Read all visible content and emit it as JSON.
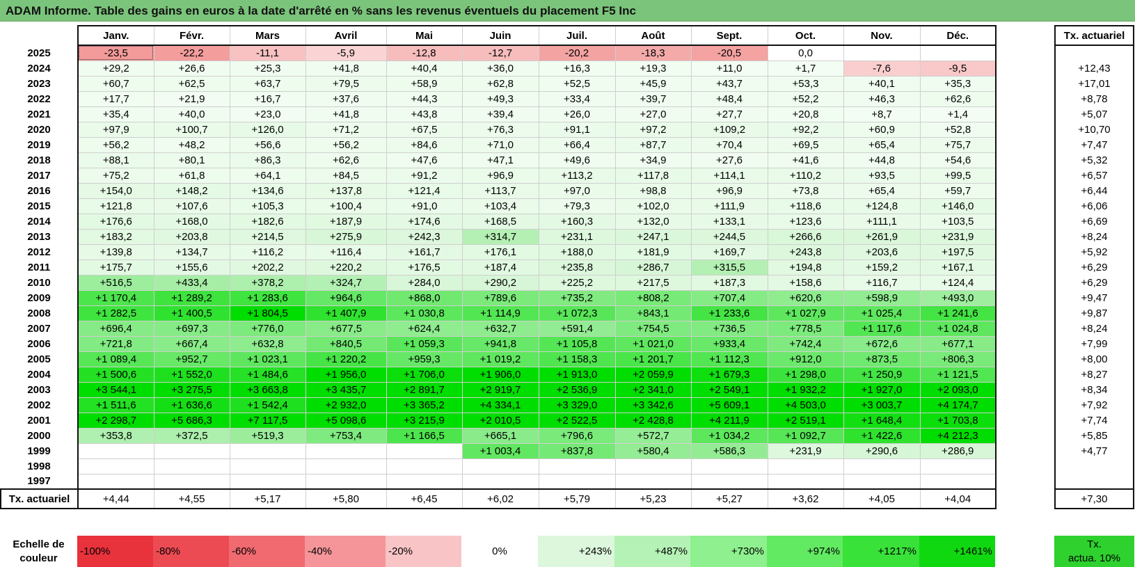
{
  "title": "ADAM Informe. Table des gains en euros à la date d'arrêté en % sans les revenus éventuels du placement F5 Inc",
  "months": [
    "Janv.",
    "Févr.",
    "Mars",
    "Avril",
    "Mai",
    "Juin",
    "Juil.",
    "Août",
    "Sept.",
    "Oct.",
    "Nov.",
    "Déc."
  ],
  "actuarial_header": "Tx. actuariel",
  "rows": [
    {
      "year": "2025",
      "values": [
        "-23,5",
        "-22,2",
        "-11,1",
        "-5,9",
        "-12,8",
        "-12,7",
        "-20,2",
        "-18,3",
        "-20,5",
        "0,0",
        "",
        ""
      ],
      "rate": ""
    },
    {
      "year": "2024",
      "values": [
        "+29,2",
        "+26,6",
        "+25,3",
        "+41,8",
        "+40,4",
        "+36,0",
        "+16,3",
        "+19,3",
        "+11,0",
        "+1,7",
        "-7,6",
        "-9,5"
      ],
      "rate": "+12,43"
    },
    {
      "year": "2023",
      "values": [
        "+60,7",
        "+62,5",
        "+63,7",
        "+79,5",
        "+58,9",
        "+62,8",
        "+52,5",
        "+45,9",
        "+43,7",
        "+53,3",
        "+40,1",
        "+35,3"
      ],
      "rate": "+17,01"
    },
    {
      "year": "2022",
      "values": [
        "+17,7",
        "+21,9",
        "+16,7",
        "+37,6",
        "+44,3",
        "+49,3",
        "+33,4",
        "+39,7",
        "+48,4",
        "+52,2",
        "+46,3",
        "+62,6"
      ],
      "rate": "+8,78"
    },
    {
      "year": "2021",
      "values": [
        "+35,4",
        "+40,0",
        "+23,0",
        "+41,8",
        "+43,8",
        "+39,4",
        "+26,0",
        "+27,0",
        "+27,7",
        "+20,8",
        "+8,7",
        "+1,4"
      ],
      "rate": "+5,07"
    },
    {
      "year": "2020",
      "values": [
        "+97,9",
        "+100,7",
        "+126,0",
        "+71,2",
        "+67,5",
        "+76,3",
        "+91,1",
        "+97,2",
        "+109,2",
        "+92,2",
        "+60,9",
        "+52,8"
      ],
      "rate": "+10,70"
    },
    {
      "year": "2019",
      "values": [
        "+56,2",
        "+48,2",
        "+56,6",
        "+56,2",
        "+84,6",
        "+71,0",
        "+66,4",
        "+87,7",
        "+70,4",
        "+69,5",
        "+65,4",
        "+75,7"
      ],
      "rate": "+7,47"
    },
    {
      "year": "2018",
      "values": [
        "+88,1",
        "+80,1",
        "+86,3",
        "+62,6",
        "+47,6",
        "+47,1",
        "+49,6",
        "+34,9",
        "+27,6",
        "+41,6",
        "+44,8",
        "+54,6"
      ],
      "rate": "+5,32"
    },
    {
      "year": "2017",
      "values": [
        "+75,2",
        "+61,8",
        "+64,1",
        "+84,5",
        "+91,2",
        "+96,9",
        "+113,2",
        "+117,8",
        "+114,1",
        "+110,2",
        "+93,5",
        "+99,5"
      ],
      "rate": "+6,57"
    },
    {
      "year": "2016",
      "values": [
        "+154,0",
        "+148,2",
        "+134,6",
        "+137,8",
        "+121,4",
        "+113,7",
        "+97,0",
        "+98,8",
        "+96,9",
        "+73,8",
        "+65,4",
        "+59,7"
      ],
      "rate": "+6,44"
    },
    {
      "year": "2015",
      "values": [
        "+121,8",
        "+107,6",
        "+105,3",
        "+100,4",
        "+91,0",
        "+103,4",
        "+79,3",
        "+102,0",
        "+111,9",
        "+118,6",
        "+124,8",
        "+146,0"
      ],
      "rate": "+6,06"
    },
    {
      "year": "2014",
      "values": [
        "+176,6",
        "+168,0",
        "+182,6",
        "+187,9",
        "+174,6",
        "+168,5",
        "+160,3",
        "+132,0",
        "+133,1",
        "+123,6",
        "+111,1",
        "+103,5"
      ],
      "rate": "+6,69"
    },
    {
      "year": "2013",
      "values": [
        "+183,2",
        "+203,8",
        "+214,5",
        "+275,9",
        "+242,3",
        "+314,7",
        "+231,1",
        "+247,1",
        "+244,5",
        "+266,6",
        "+261,9",
        "+231,9"
      ],
      "rate": "+8,24"
    },
    {
      "year": "2012",
      "values": [
        "+139,8",
        "+134,7",
        "+116,2",
        "+116,4",
        "+161,7",
        "+176,1",
        "+188,0",
        "+181,9",
        "+169,7",
        "+243,8",
        "+203,6",
        "+197,5"
      ],
      "rate": "+5,92"
    },
    {
      "year": "2011",
      "values": [
        "+175,7",
        "+155,6",
        "+202,2",
        "+220,2",
        "+176,5",
        "+187,4",
        "+235,8",
        "+286,7",
        "+315,5",
        "+194,8",
        "+159,2",
        "+167,1"
      ],
      "rate": "+6,29"
    },
    {
      "year": "2010",
      "values": [
        "+516,5",
        "+433,4",
        "+378,2",
        "+324,7",
        "+284,0",
        "+290,2",
        "+225,2",
        "+217,5",
        "+187,3",
        "+158,6",
        "+116,7",
        "+124,4"
      ],
      "rate": "+6,29"
    },
    {
      "year": "2009",
      "values": [
        "+1 170,4",
        "+1 289,2",
        "+1 283,6",
        "+964,6",
        "+868,0",
        "+789,6",
        "+735,2",
        "+808,2",
        "+707,4",
        "+620,6",
        "+598,9",
        "+493,0"
      ],
      "rate": "+9,47"
    },
    {
      "year": "2008",
      "values": [
        "+1 282,5",
        "+1 400,5",
        "+1 804,5",
        "+1 407,9",
        "+1 030,8",
        "+1 114,9",
        "+1 072,3",
        "+843,1",
        "+1 233,6",
        "+1 027,9",
        "+1 025,4",
        "+1 241,6"
      ],
      "rate": "+9,87"
    },
    {
      "year": "2007",
      "values": [
        "+696,4",
        "+697,3",
        "+776,0",
        "+677,5",
        "+624,4",
        "+632,7",
        "+591,4",
        "+754,5",
        "+736,5",
        "+778,5",
        "+1 117,6",
        "+1 024,8"
      ],
      "rate": "+8,24"
    },
    {
      "year": "2006",
      "values": [
        "+721,8",
        "+667,4",
        "+632,8",
        "+840,5",
        "+1 059,3",
        "+941,8",
        "+1 105,8",
        "+1 021,0",
        "+933,4",
        "+742,4",
        "+672,6",
        "+677,1"
      ],
      "rate": "+7,99"
    },
    {
      "year": "2005",
      "values": [
        "+1 089,4",
        "+952,7",
        "+1 023,1",
        "+1 220,2",
        "+959,3",
        "+1 019,2",
        "+1 158,3",
        "+1 201,7",
        "+1 112,3",
        "+912,0",
        "+873,5",
        "+806,3"
      ],
      "rate": "+8,00"
    },
    {
      "year": "2004",
      "values": [
        "+1 500,6",
        "+1 552,0",
        "+1 484,6",
        "+1 956,0",
        "+1 706,0",
        "+1 906,0",
        "+1 913,0",
        "+2 059,9",
        "+1 679,3",
        "+1 298,0",
        "+1 250,9",
        "+1 121,5"
      ],
      "rate": "+8,27"
    },
    {
      "year": "2003",
      "values": [
        "+3 544,1",
        "+3 275,5",
        "+3 663,8",
        "+3 435,7",
        "+2 891,7",
        "+2 919,7",
        "+2 536,9",
        "+2 341,0",
        "+2 549,1",
        "+1 932,2",
        "+1 927,0",
        "+2 093,0"
      ],
      "rate": "+8,34"
    },
    {
      "year": "2002",
      "values": [
        "+1 511,6",
        "+1 636,6",
        "+1 542,4",
        "+2 932,0",
        "+3 365,2",
        "+4 334,1",
        "+3 329,0",
        "+3 342,6",
        "+5 609,1",
        "+4 503,0",
        "+3 003,7",
        "+4 174,7"
      ],
      "rate": "+7,92"
    },
    {
      "year": "2001",
      "values": [
        "+2 298,7",
        "+5 686,3",
        "+7 117,5",
        "+5 098,6",
        "+3 215,9",
        "+2 010,5",
        "+2 522,5",
        "+2 428,8",
        "+4 211,9",
        "+2 519,1",
        "+1 648,4",
        "+1 703,8"
      ],
      "rate": "+7,74"
    },
    {
      "year": "2000",
      "values": [
        "+353,8",
        "+372,5",
        "+519,3",
        "+753,4",
        "+1 166,5",
        "+665,1",
        "+796,6",
        "+572,7",
        "+1 034,2",
        "+1 092,7",
        "+1 422,6",
        "+4 212,3"
      ],
      "rate": "+5,85"
    },
    {
      "year": "1999",
      "values": [
        "",
        "",
        "",
        "",
        "",
        "+1 003,4",
        "+837,8",
        "+580,4",
        "+586,3",
        "+231,9",
        "+290,6",
        "+286,9"
      ],
      "rate": "+4,77"
    },
    {
      "year": "1998",
      "values": [
        "",
        "",
        "",
        "",
        "",
        "",
        "",
        "",
        "",
        "",
        "",
        ""
      ],
      "rate": ""
    },
    {
      "year": "1997",
      "values": [
        "",
        "",
        "",
        "",
        "",
        "",
        "",
        "",
        "",
        "",
        "",
        ""
      ],
      "rate": ""
    }
  ],
  "footer": {
    "label": "Tx. actuariel",
    "values": [
      "+4,44",
      "+4,55",
      "+5,17",
      "+5,80",
      "+6,45",
      "+6,02",
      "+5,79",
      "+5,23",
      "+5,27",
      "+3,62",
      "+4,05",
      "+4,04"
    ],
    "rate": "+7,30"
  },
  "scale": {
    "label_line1": "Echelle de",
    "label_line2": "couleur",
    "steps": [
      {
        "label": "-100%",
        "color": "#e8323c",
        "kind": "neg"
      },
      {
        "label": "-80%",
        "color": "#ec4b53",
        "kind": "neg"
      },
      {
        "label": "-60%",
        "color": "#f06a70",
        "kind": "neg"
      },
      {
        "label": "-40%",
        "color": "#f5959a",
        "kind": "neg"
      },
      {
        "label": "-20%",
        "color": "#f9c4c6",
        "kind": "neg"
      },
      {
        "label": "0%",
        "color": "#ffffff",
        "kind": "zero"
      },
      {
        "label": "+243%",
        "color": "#dcf7dc",
        "kind": "pos"
      },
      {
        "label": "+487%",
        "color": "#b5f2b5",
        "kind": "pos"
      },
      {
        "label": "+730%",
        "color": "#8ef08e",
        "kind": "pos"
      },
      {
        "label": "+974%",
        "color": "#63ea63",
        "kind": "pos"
      },
      {
        "label": "+1217%",
        "color": "#39e239",
        "kind": "pos"
      },
      {
        "label": "+1461%",
        "color": "#10d810",
        "kind": "pos"
      }
    ],
    "actu_line1": "Tx.",
    "actu_line2": "actua. 10%"
  },
  "colors": {
    "title_bg": "#7bc47b",
    "neg_strong": "#f39a9a",
    "neg_light": "#fde4e4",
    "pos_max": "#00dd00",
    "actu_scale": "#2ed12e"
  }
}
